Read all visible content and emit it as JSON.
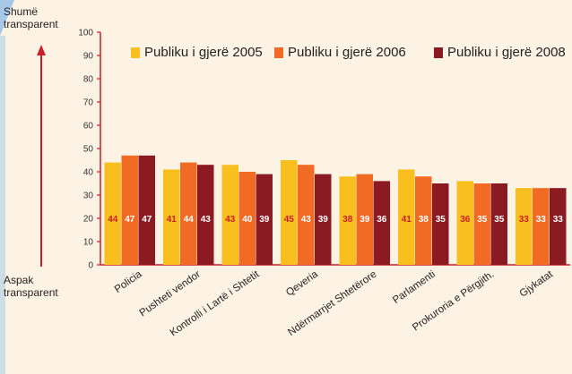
{
  "top_label_line1": "Shumë",
  "top_label_line2": "transparent",
  "bottom_label_line1": "Aspak",
  "bottom_label_line2": "transparent",
  "colors": {
    "background": "#fdf3e4",
    "corner": "#a8c8e8"
  },
  "chart_data": {
    "type": "bar",
    "title": "",
    "xlabel": "",
    "ylabel": "",
    "ylim": [
      0,
      100
    ],
    "yticks": [
      0,
      10,
      20,
      30,
      40,
      50,
      60,
      70,
      80,
      90,
      100
    ],
    "grid": false,
    "legend_position": "top",
    "categories": [
      "Policia",
      "Pushteti vendor",
      "Kontrolli i Lartë i Shtetit",
      "Qeveria",
      "Ndërmarrjet Shtetërore",
      "Parlamenti",
      "Prokuroria e Përgjith.",
      "Gjykatat"
    ],
    "series": [
      {
        "name": "Publiku i gjerë 2005",
        "color": "#f9bf1e",
        "label_color": "#c8202a",
        "values": [
          44,
          41,
          43,
          45,
          38,
          41,
          36,
          33
        ]
      },
      {
        "name": "Publiku i gjerë 2006",
        "color": "#f26b24",
        "label_color": "#ffffff",
        "values": [
          47,
          44,
          40,
          43,
          39,
          38,
          35,
          33
        ]
      },
      {
        "name": "Publiku i gjerë 2008",
        "color": "#8b1a22",
        "label_color": "#ffffff",
        "values": [
          47,
          43,
          39,
          39,
          36,
          35,
          35,
          33
        ]
      }
    ]
  }
}
